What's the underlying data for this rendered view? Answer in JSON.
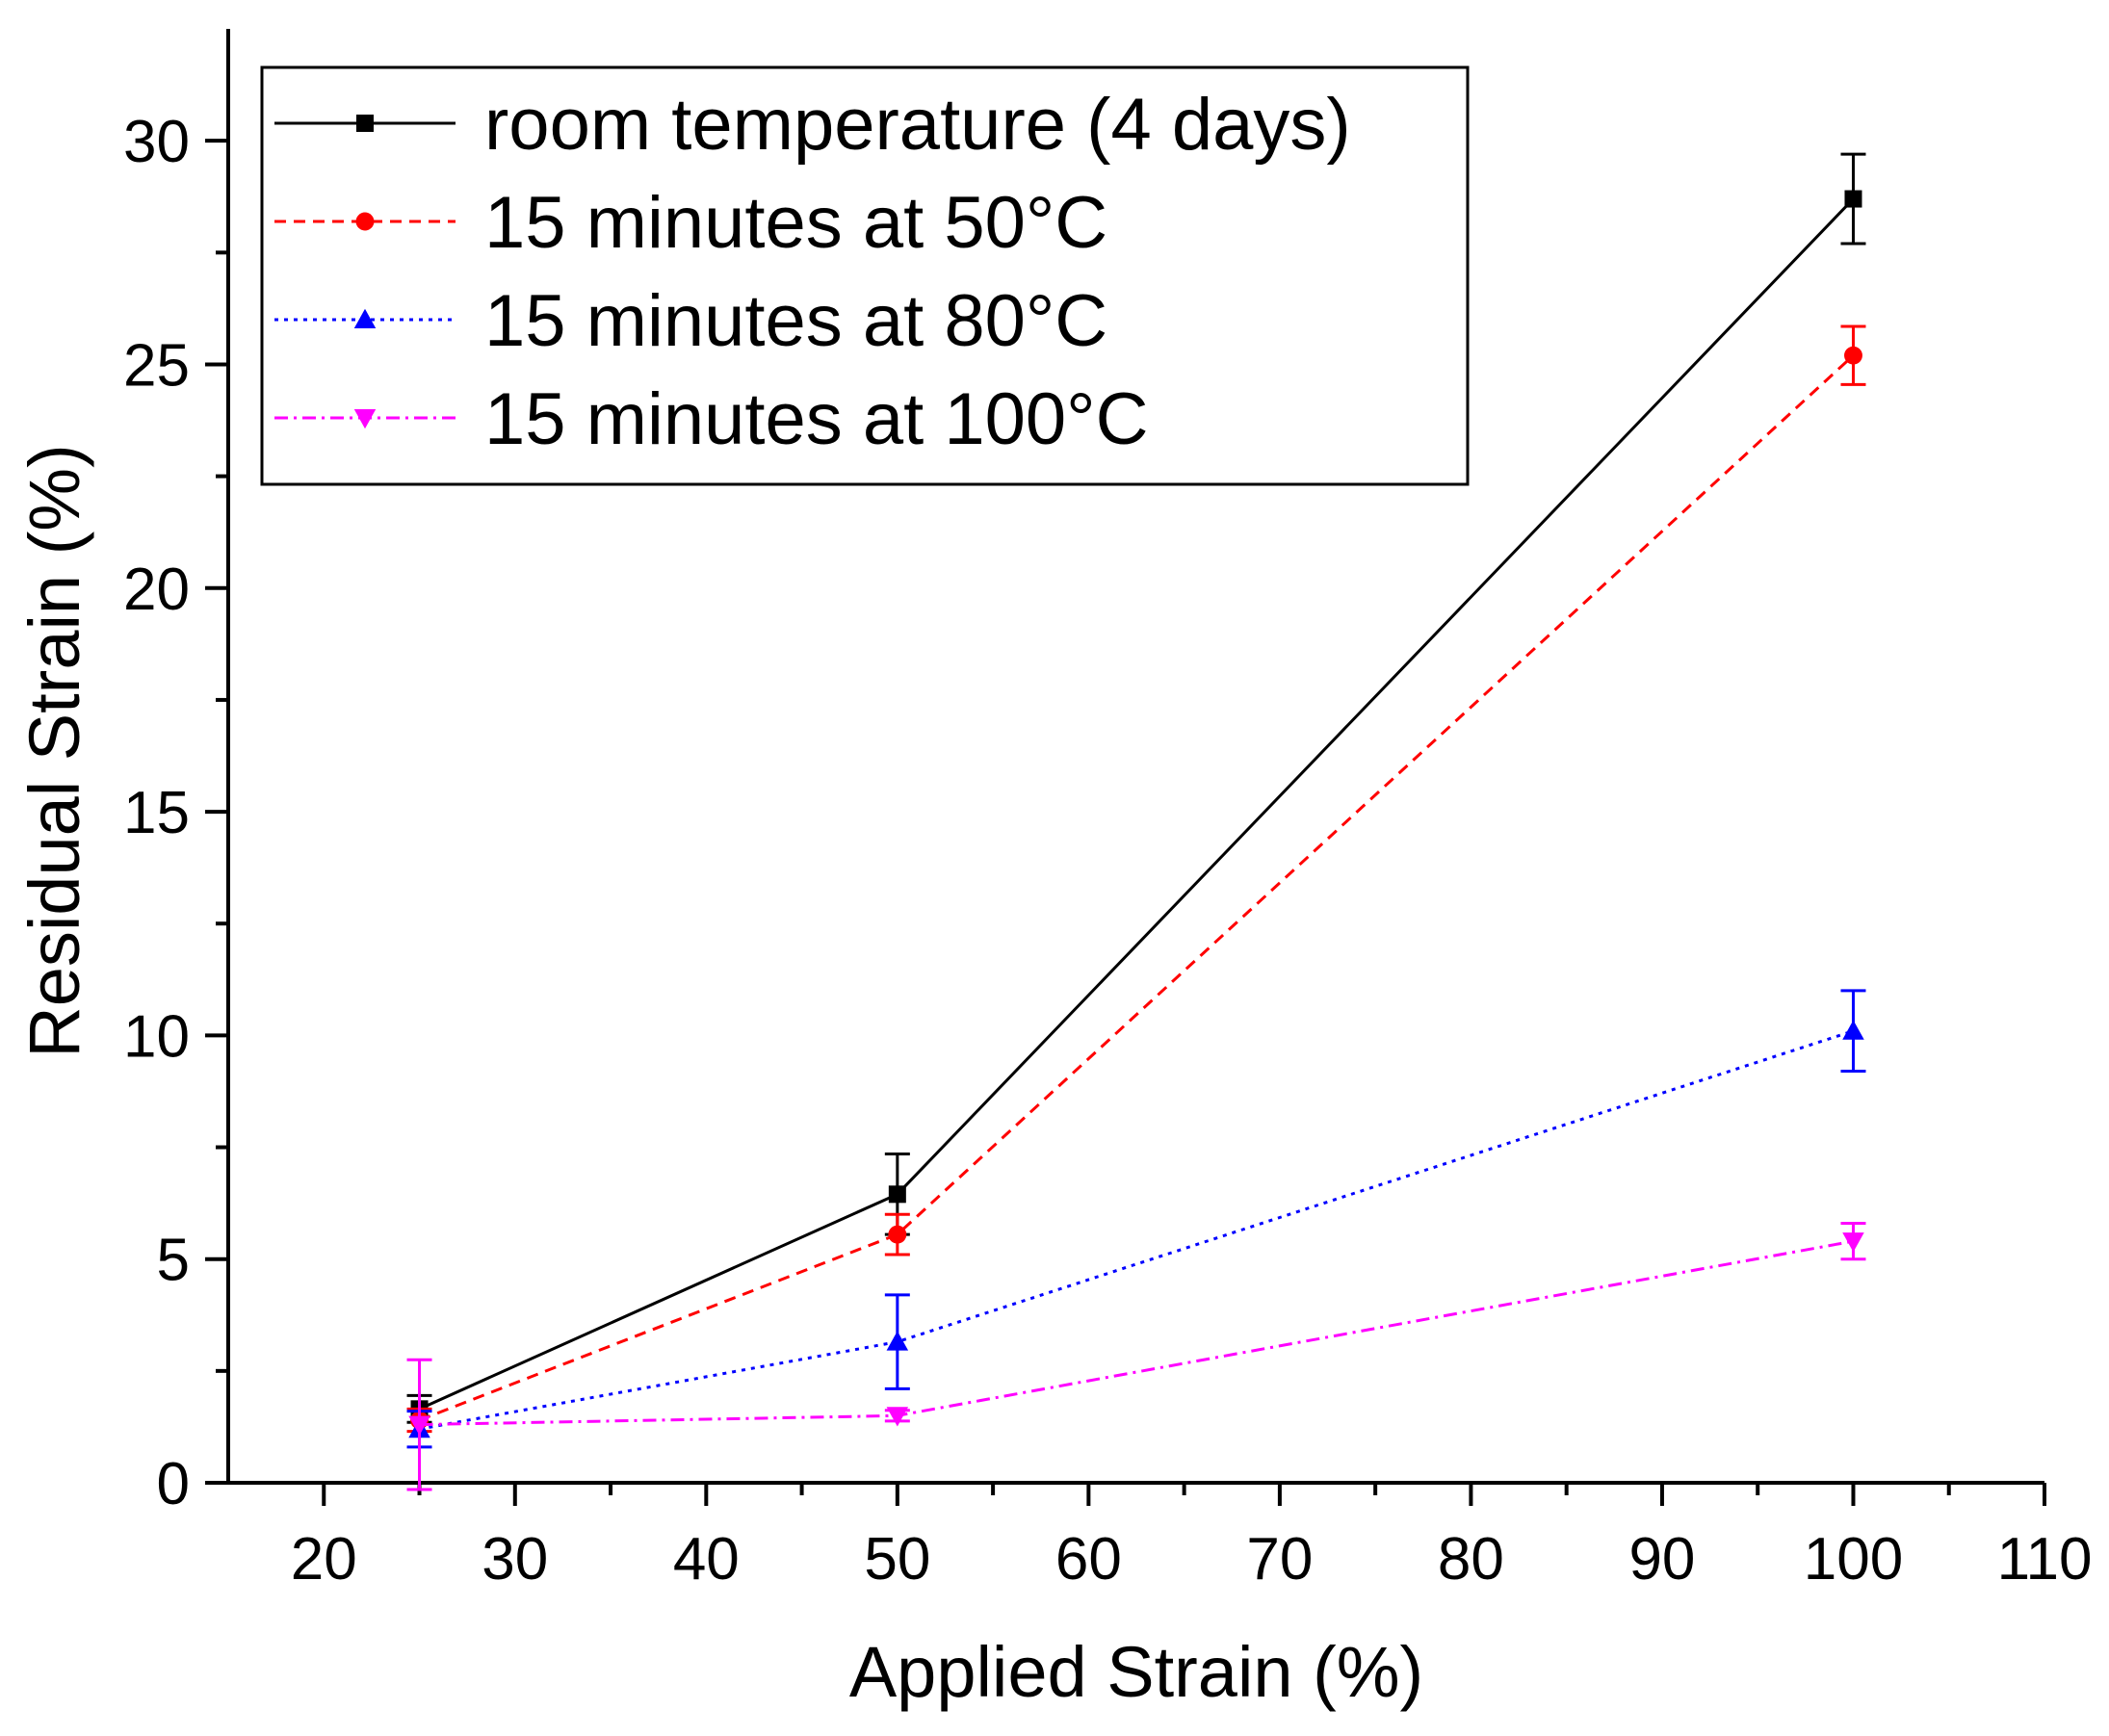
{
  "chart_data": {
    "type": "line",
    "xlabel": "Applied Strain (%)",
    "ylabel": "Residual Strain (%)",
    "xlim": [
      15,
      110
    ],
    "ylim": [
      0,
      32.5
    ],
    "x_ticks": [
      20,
      30,
      40,
      50,
      60,
      70,
      80,
      90,
      100,
      110
    ],
    "y_ticks": [
      0,
      5,
      10,
      15,
      20,
      25,
      30
    ],
    "x_minor_step": 5,
    "y_minor_step": 2.5,
    "grid": false,
    "legend_position": "top-left",
    "series": [
      {
        "name": "room temperature (4 days)",
        "color": "#000000",
        "line_style": "solid",
        "marker": "square",
        "x": [
          25,
          50,
          100
        ],
        "y": [
          1.65,
          6.45,
          28.7
        ],
        "error": [
          0.3,
          0.9,
          1.0
        ]
      },
      {
        "name": "15 minutes at 50°C",
        "color": "#ff0000",
        "line_style": "dashed",
        "marker": "circle",
        "x": [
          25,
          50,
          100
        ],
        "y": [
          1.4,
          5.55,
          25.2
        ],
        "error": [
          0.25,
          0.45,
          0.65
        ]
      },
      {
        "name": "15 minutes at 80°C",
        "color": "#0000ff",
        "line_style": "dotted",
        "marker": "triangle-up",
        "x": [
          25,
          50,
          100
        ],
        "y": [
          1.2,
          3.15,
          10.1
        ],
        "error": [
          0.4,
          1.05,
          0.9
        ]
      },
      {
        "name": "15 minutes at 100°C",
        "color": "#ff00ff",
        "line_style": "dash-dot",
        "marker": "triangle-down",
        "x": [
          25,
          50,
          100
        ],
        "y": [
          1.3,
          1.5,
          5.4
        ],
        "error": [
          1.45,
          0.12,
          0.4
        ]
      }
    ]
  }
}
